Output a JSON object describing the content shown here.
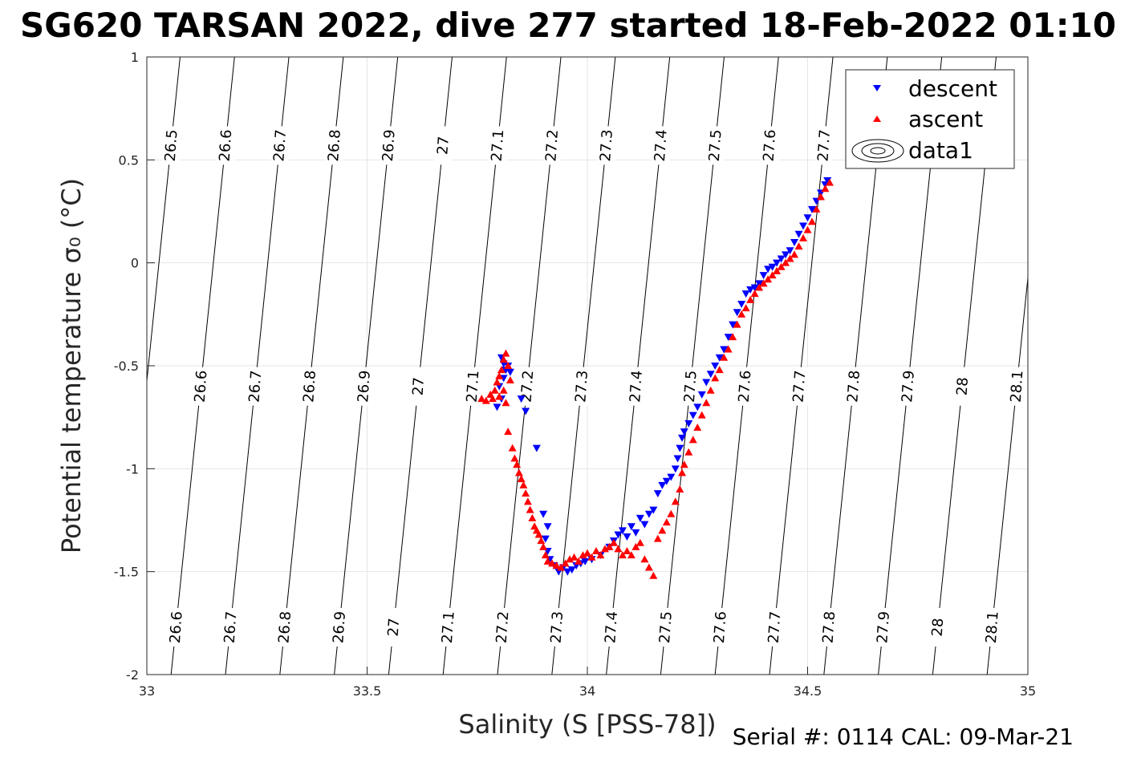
{
  "chart_data": {
    "type": "scatter",
    "title": "SG620 TARSAN 2022, dive 277 started 18-Feb-2022 01:10",
    "xlabel": "Salinity (S [PSS-78])",
    "ylabel": "Potential temperature σ₀ (°C)",
    "footer": "Serial #: 0114  CAL: 09-Mar-21",
    "xlim": [
      33,
      35
    ],
    "ylim": [
      -2,
      1
    ],
    "xticks": [
      "33",
      "33.5",
      "34",
      "34.5",
      "35"
    ],
    "yticks": [
      "-2",
      "-1.5",
      "-1",
      "-0.5",
      "0",
      "0.5",
      "1"
    ],
    "grid": true,
    "legend_position": "top-right",
    "colors": {
      "descent": "#0000ff",
      "ascent": "#ff0000",
      "contour": "#000000"
    },
    "legend": [
      {
        "label": "descent",
        "marker": "triangle-down",
        "color": "#0000ff"
      },
      {
        "label": "ascent",
        "marker": "triangle-up",
        "color": "#ff0000"
      },
      {
        "label": "data1",
        "marker": "contour",
        "color": "#000000"
      }
    ],
    "contours": {
      "levels": [
        "26.5",
        "26.6",
        "26.7",
        "26.8",
        "26.9",
        "27",
        "27.1",
        "27.2",
        "27.3",
        "27.4",
        "27.5",
        "27.6",
        "27.7",
        "27.8",
        "27.9",
        "28",
        "28.1"
      ],
      "bottom_labels": [
        "26.6",
        "26.7",
        "26.8",
        "26.9",
        "27",
        "27.1",
        "27.2",
        "27.3",
        "27.4",
        "27.5",
        "27.6",
        "27.7",
        "27.8",
        "27.9",
        "28",
        "28.1"
      ],
      "middle_labels": [
        "26.6",
        "26.7",
        "26.8",
        "26.9",
        "27",
        "27.1",
        "27.2",
        "27.3",
        "27.4",
        "27.5",
        "27.6",
        "27.7",
        "27.8",
        "27.9",
        "28",
        "28.1"
      ],
      "top_labels": [
        "26.5",
        "26.6",
        "26.7",
        "26.8",
        "26.9",
        "27",
        "27.1",
        "27.2",
        "27.3",
        "27.4",
        "27.5",
        "27.6",
        "27.7"
      ]
    },
    "series": [
      {
        "name": "descent",
        "points": [
          [
            33.805,
            -0.46
          ],
          [
            33.81,
            -0.49
          ],
          [
            33.815,
            -0.52
          ],
          [
            33.82,
            -0.5
          ],
          [
            33.825,
            -0.53
          ],
          [
            33.81,
            -0.56
          ],
          [
            33.8,
            -0.6
          ],
          [
            33.805,
            -0.66
          ],
          [
            33.795,
            -0.7
          ],
          [
            33.85,
            -0.66
          ],
          [
            33.86,
            -0.72
          ],
          [
            33.885,
            -0.9
          ],
          [
            33.9,
            -1.22
          ],
          [
            33.91,
            -1.28
          ],
          [
            33.905,
            -1.34
          ],
          [
            33.91,
            -1.4
          ],
          [
            33.915,
            -1.44
          ],
          [
            33.925,
            -1.47
          ],
          [
            33.935,
            -1.5
          ],
          [
            33.945,
            -1.48
          ],
          [
            33.955,
            -1.5
          ],
          [
            33.965,
            -1.49
          ],
          [
            33.975,
            -1.47
          ],
          [
            33.985,
            -1.46
          ],
          [
            33.995,
            -1.45
          ],
          [
            34.01,
            -1.44
          ],
          [
            34.03,
            -1.42
          ],
          [
            34.05,
            -1.38
          ],
          [
            34.06,
            -1.35
          ],
          [
            34.07,
            -1.32
          ],
          [
            34.08,
            -1.3
          ],
          [
            34.09,
            -1.33
          ],
          [
            34.1,
            -1.28
          ],
          [
            34.11,
            -1.31
          ],
          [
            34.12,
            -1.24
          ],
          [
            34.13,
            -1.27
          ],
          [
            34.14,
            -1.22
          ],
          [
            34.15,
            -1.2
          ],
          [
            34.16,
            -1.12
          ],
          [
            34.17,
            -1.08
          ],
          [
            34.18,
            -1.06
          ],
          [
            34.19,
            -1.04
          ],
          [
            34.2,
            -1.0
          ],
          [
            34.205,
            -0.95
          ],
          [
            34.21,
            -0.9
          ],
          [
            34.215,
            -0.85
          ],
          [
            34.22,
            -0.82
          ],
          [
            34.23,
            -0.78
          ],
          [
            34.24,
            -0.74
          ],
          [
            34.25,
            -0.7
          ],
          [
            34.26,
            -0.64
          ],
          [
            34.27,
            -0.58
          ],
          [
            34.28,
            -0.54
          ],
          [
            34.29,
            -0.5
          ],
          [
            34.3,
            -0.46
          ],
          [
            34.31,
            -0.42
          ],
          [
            34.32,
            -0.36
          ],
          [
            34.33,
            -0.3
          ],
          [
            34.34,
            -0.24
          ],
          [
            34.35,
            -0.2
          ],
          [
            34.36,
            -0.15
          ],
          [
            34.37,
            -0.13
          ],
          [
            34.38,
            -0.12
          ],
          [
            34.39,
            -0.1
          ],
          [
            34.4,
            -0.06
          ],
          [
            34.41,
            -0.03
          ],
          [
            34.42,
            -0.02
          ],
          [
            34.43,
            0.0
          ],
          [
            34.44,
            0.02
          ],
          [
            34.45,
            0.04
          ],
          [
            34.46,
            0.06
          ],
          [
            34.47,
            0.1
          ],
          [
            34.48,
            0.14
          ],
          [
            34.49,
            0.18
          ],
          [
            34.5,
            0.22
          ],
          [
            34.51,
            0.26
          ],
          [
            34.52,
            0.3
          ],
          [
            34.53,
            0.34
          ],
          [
            34.54,
            0.38
          ],
          [
            34.545,
            0.4
          ]
        ]
      },
      {
        "name": "ascent",
        "points": [
          [
            33.76,
            -0.66
          ],
          [
            33.77,
            -0.67
          ],
          [
            33.78,
            -0.64
          ],
          [
            33.785,
            -0.66
          ],
          [
            33.79,
            -0.62
          ],
          [
            33.795,
            -0.58
          ],
          [
            33.8,
            -0.55
          ],
          [
            33.805,
            -0.52
          ],
          [
            33.81,
            -0.47
          ],
          [
            33.815,
            -0.44
          ],
          [
            33.82,
            -0.5
          ],
          [
            33.825,
            -0.57
          ],
          [
            33.81,
            -0.62
          ],
          [
            33.8,
            -0.65
          ],
          [
            33.815,
            -0.68
          ],
          [
            33.82,
            -0.82
          ],
          [
            33.83,
            -0.9
          ],
          [
            33.835,
            -0.95
          ],
          [
            33.84,
            -0.98
          ],
          [
            33.845,
            -1.02
          ],
          [
            33.85,
            -1.05
          ],
          [
            33.855,
            -1.08
          ],
          [
            33.86,
            -1.12
          ],
          [
            33.865,
            -1.16
          ],
          [
            33.87,
            -1.2
          ],
          [
            33.875,
            -1.24
          ],
          [
            33.88,
            -1.28
          ],
          [
            33.885,
            -1.3
          ],
          [
            33.89,
            -1.32
          ],
          [
            33.895,
            -1.35
          ],
          [
            33.9,
            -1.38
          ],
          [
            33.905,
            -1.42
          ],
          [
            33.91,
            -1.45
          ],
          [
            33.92,
            -1.46
          ],
          [
            33.93,
            -1.47
          ],
          [
            33.94,
            -1.48
          ],
          [
            33.95,
            -1.46
          ],
          [
            33.96,
            -1.44
          ],
          [
            33.97,
            -1.43
          ],
          [
            33.98,
            -1.45
          ],
          [
            33.99,
            -1.42
          ],
          [
            34.0,
            -1.41
          ],
          [
            34.01,
            -1.43
          ],
          [
            34.02,
            -1.4
          ],
          [
            34.03,
            -1.42
          ],
          [
            34.04,
            -1.39
          ],
          [
            34.05,
            -1.38
          ],
          [
            34.06,
            -1.36
          ],
          [
            34.07,
            -1.39
          ],
          [
            34.08,
            -1.42
          ],
          [
            34.09,
            -1.4
          ],
          [
            34.1,
            -1.42
          ],
          [
            34.11,
            -1.38
          ],
          [
            34.12,
            -1.36
          ],
          [
            34.13,
            -1.44
          ],
          [
            34.14,
            -1.48
          ],
          [
            34.15,
            -1.52
          ],
          [
            34.16,
            -1.34
          ],
          [
            34.17,
            -1.3
          ],
          [
            34.18,
            -1.26
          ],
          [
            34.19,
            -1.22
          ],
          [
            34.2,
            -1.16
          ],
          [
            34.21,
            -1.1
          ],
          [
            34.215,
            -1.02
          ],
          [
            34.22,
            -0.98
          ],
          [
            34.23,
            -0.92
          ],
          [
            34.24,
            -0.86
          ],
          [
            34.25,
            -0.8
          ],
          [
            34.26,
            -0.74
          ],
          [
            34.27,
            -0.68
          ],
          [
            34.28,
            -0.62
          ],
          [
            34.29,
            -0.56
          ],
          [
            34.3,
            -0.52
          ],
          [
            34.31,
            -0.46
          ],
          [
            34.32,
            -0.42
          ],
          [
            34.33,
            -0.36
          ],
          [
            34.34,
            -0.3
          ],
          [
            34.35,
            -0.25
          ],
          [
            34.36,
            -0.22
          ],
          [
            34.37,
            -0.18
          ],
          [
            34.38,
            -0.15
          ],
          [
            34.39,
            -0.12
          ],
          [
            34.4,
            -0.1
          ],
          [
            34.41,
            -0.08
          ],
          [
            34.42,
            -0.06
          ],
          [
            34.43,
            -0.04
          ],
          [
            34.44,
            -0.02
          ],
          [
            34.45,
            0.0
          ],
          [
            34.46,
            0.02
          ],
          [
            34.47,
            0.04
          ],
          [
            34.48,
            0.08
          ],
          [
            34.49,
            0.12
          ],
          [
            34.5,
            0.16
          ],
          [
            34.51,
            0.2
          ],
          [
            34.52,
            0.26
          ],
          [
            34.53,
            0.32
          ],
          [
            34.54,
            0.36
          ],
          [
            34.55,
            0.39
          ]
        ]
      }
    ]
  }
}
